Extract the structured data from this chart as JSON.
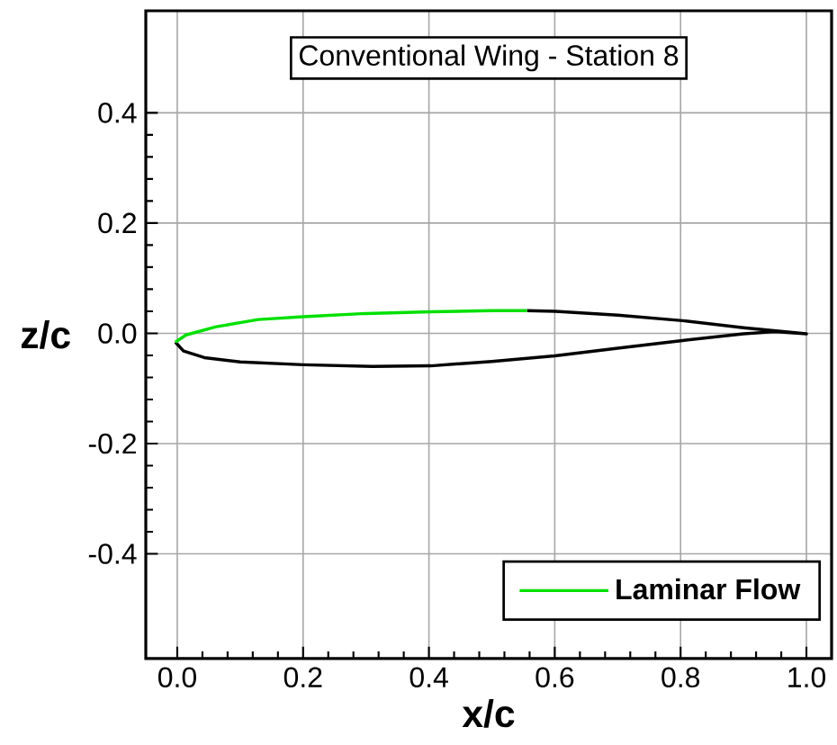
{
  "chart_data": {
    "type": "line",
    "title": "Conventional Wing - Station 8",
    "xlabel": "x/c",
    "ylabel": "z/c",
    "xlim": [
      -0.05,
      1.04
    ],
    "ylim": [
      -0.59,
      0.585
    ],
    "xticks": [
      {
        "value": 0,
        "label": "0.0"
      },
      {
        "value": 0.2,
        "label": "0.2"
      },
      {
        "value": 0.4,
        "label": "0.4"
      },
      {
        "value": 0.6,
        "label": "0.6"
      },
      {
        "value": 0.8,
        "label": "0.8"
      },
      {
        "value": 1,
        "label": "1.0"
      }
    ],
    "yticks": [
      {
        "value": -0.4,
        "label": "-0.4"
      },
      {
        "value": -0.2,
        "label": "-0.2"
      },
      {
        "value": 0,
        "label": "0.0"
      },
      {
        "value": 0.2,
        "label": "0.2"
      },
      {
        "value": 0.4,
        "label": "0.4"
      }
    ],
    "grid": true,
    "legend": "bottom right",
    "series": [
      {
        "color": "#000000",
        "x": [
          -0.003,
          0.01,
          0.043,
          0.1,
          0.2,
          0.31,
          0.403,
          0.5,
          0.6,
          0.7,
          0.803,
          0.9,
          0.95,
          1.0,
          0.9,
          0.803,
          0.7,
          0.601,
          0.556
        ],
        "values": [
          -0.016,
          -0.032,
          -0.044,
          -0.052,
          -0.057,
          -0.06,
          -0.059,
          -0.051,
          -0.041,
          -0.027,
          -0.013,
          -0.001,
          0.003,
          -0.001,
          0.01,
          0.023,
          0.033,
          0.04,
          0.041
        ]
      },
      {
        "name": "Laminar Flow",
        "color": "#00e000",
        "x": [
          -0.003,
          0.014,
          0.062,
          0.129,
          0.2,
          0.3,
          0.403,
          0.5,
          0.556
        ],
        "values": [
          -0.016,
          -0.003,
          0.012,
          0.025,
          0.03,
          0.036,
          0.039,
          0.041,
          0.041
        ]
      }
    ]
  }
}
